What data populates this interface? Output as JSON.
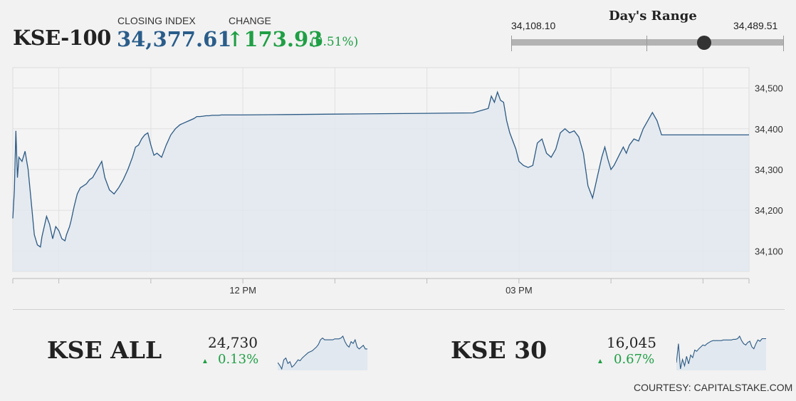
{
  "header": {
    "ticker": "KSE-100",
    "closing_label": "CLOSING INDEX",
    "closing_value": "34,377.61",
    "change_label": "CHANGE",
    "change_arrow": "↑",
    "change_value": "173.93",
    "change_pct": "(0.51%)"
  },
  "day_range": {
    "title": "Day's Range",
    "low": "34,108.10",
    "high": "34,489.51",
    "current": 34377.61
  },
  "colors": {
    "positive": "#1f9f45",
    "index_value": "#2a5d8a",
    "line": "#2c5a85",
    "area_fill": "#e1e8ef"
  },
  "chart_data": {
    "type": "area",
    "x_tick_labels": [
      "12 PM",
      "03 PM"
    ],
    "y_ticks": [
      34100,
      34200,
      34300,
      34400,
      34500
    ],
    "y_tick_labels": [
      "34,100",
      "34,200",
      "34,300",
      "34,400",
      "34,500"
    ],
    "ylim": [
      34050,
      34550
    ],
    "xlim": [
      "09:30",
      "17:30"
    ],
    "grid": true,
    "series": [
      {
        "x": [
          "09:30",
          "09:31",
          "09:32",
          "09:33",
          "09:34",
          "09:36",
          "09:38",
          "09:40",
          "09:42",
          "09:44",
          "09:46",
          "09:48",
          "09:49",
          "09:52",
          "09:54",
          "09:56",
          "09:58",
          "10:00",
          "10:02",
          "10:04",
          "10:05",
          "10:07",
          "10:08",
          "10:10",
          "10:12",
          "10:14",
          "10:16",
          "10:18",
          "10:20",
          "10:22",
          "10:25",
          "10:28",
          "10:30",
          "10:33",
          "10:36",
          "10:39",
          "10:42",
          "10:45",
          "10:48",
          "10:50",
          "10:52",
          "10:54",
          "10:56",
          "10:58",
          "11:00",
          "11:02",
          "11:04",
          "11:07",
          "11:10",
          "11:13",
          "11:16",
          "11:19",
          "11:22",
          "11:25",
          "11:28",
          "11:30",
          "11:32",
          "11:34",
          "11:36",
          "11:38",
          "11:40",
          "11:42",
          "11:44",
          "11:46",
          "11:48",
          "11:50",
          "11:53",
          "11:56",
          "11:58",
          "12:00",
          "12:30",
          "13:00",
          "13:30",
          "14:00",
          "14:30",
          "14:40",
          "14:42",
          "14:44",
          "14:46",
          "14:48",
          "14:50",
          "14:52",
          "14:54",
          "14:56",
          "14:58",
          "15:00",
          "15:03",
          "15:06",
          "15:09",
          "15:12",
          "15:15",
          "15:18",
          "15:21",
          "15:24",
          "15:27",
          "15:30",
          "15:33",
          "15:36",
          "15:39",
          "15:42",
          "15:45",
          "15:48",
          "15:51",
          "15:54",
          "15:56",
          "15:58",
          "16:00",
          "16:02",
          "16:04",
          "16:06",
          "16:08",
          "16:10",
          "16:12",
          "16:15",
          "16:18",
          "16:21",
          "16:24",
          "16:27",
          "16:30",
          "16:33",
          "16:36",
          "16:39",
          "16:42",
          "16:45",
          "16:48",
          "16:51",
          "17:00",
          "17:30"
        ],
        "y": [
          34180,
          34250,
          34395,
          34280,
          34330,
          34320,
          34345,
          34300,
          34220,
          34140,
          34115,
          34110,
          34135,
          34185,
          34165,
          34130,
          34160,
          34150,
          34130,
          34125,
          34140,
          34160,
          34175,
          34210,
          34240,
          34255,
          34260,
          34265,
          34275,
          34280,
          34300,
          34320,
          34280,
          34250,
          34240,
          34255,
          34275,
          34300,
          34330,
          34355,
          34360,
          34375,
          34385,
          34390,
          34360,
          34335,
          34340,
          34330,
          34360,
          34385,
          34400,
          34410,
          34415,
          34420,
          34425,
          34430,
          34430,
          34431,
          34432,
          34432,
          34433,
          34433,
          34433,
          34434,
          34434,
          34434,
          34434,
          34434,
          34434,
          34434,
          34435,
          34436,
          34437,
          34438,
          34439,
          34450,
          34480,
          34465,
          34490,
          34470,
          34465,
          34420,
          34390,
          34370,
          34350,
          34320,
          34310,
          34305,
          34310,
          34365,
          34375,
          34340,
          34330,
          34350,
          34390,
          34400,
          34390,
          34395,
          34380,
          34340,
          34260,
          34230,
          34280,
          34330,
          34355,
          34325,
          34300,
          34310,
          34325,
          34340,
          34355,
          34340,
          34360,
          34375,
          34370,
          34400,
          34420,
          34440,
          34420,
          34385,
          34385,
          34385,
          34385,
          34385,
          34385,
          34385,
          34385,
          34385
        ]
      }
    ]
  },
  "minis": [
    {
      "name": "KSE ALL",
      "value": "24,730",
      "arrow": "▲",
      "change": "0.13%",
      "chart_data": {
        "type": "line",
        "y": [
          55,
          52,
          48,
          58,
          60,
          54,
          56,
          50,
          52,
          55,
          58,
          57,
          60,
          62,
          64,
          66,
          67,
          68,
          70,
          72,
          75,
          80,
          82,
          80,
          80,
          80,
          80,
          80,
          81,
          81,
          81,
          82,
          84,
          78,
          74,
          72,
          78,
          76,
          80,
          72,
          70,
          72,
          74,
          70,
          70
        ]
      }
    },
    {
      "name": "KSE 30",
      "value": "16,045",
      "arrow": "▲",
      "change": "0.67%",
      "chart_data": {
        "type": "line",
        "y": [
          50,
          80,
          40,
          55,
          45,
          60,
          48,
          62,
          58,
          70,
          68,
          72,
          75,
          78,
          77,
          80,
          82,
          84,
          85,
          85,
          85,
          85,
          85,
          86,
          86,
          86,
          86,
          86,
          87,
          87,
          88,
          92,
          85,
          80,
          78,
          82,
          84,
          75,
          72,
          80,
          86,
          84,
          88,
          88,
          88
        ]
      }
    }
  ],
  "footer": {
    "courtesy": "COURTESY: CAPITALSTAKE.COM"
  }
}
